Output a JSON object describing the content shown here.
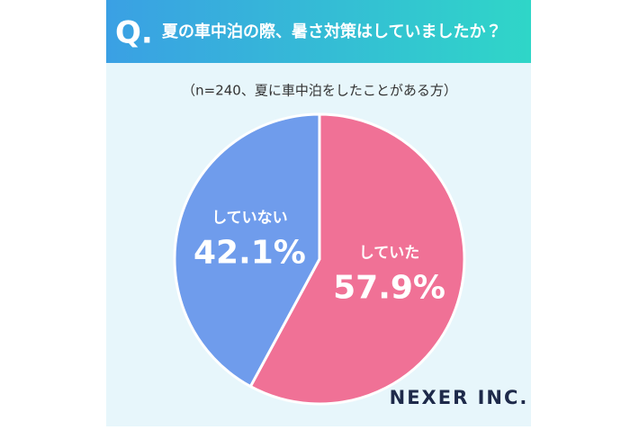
{
  "chart_data": {
    "type": "pie",
    "question_marker": "Q.",
    "title": "夏の車中泊の際、暑さ対策はしていましたか？",
    "subtitle": "（n=240、夏に車中泊をしたことがある方）",
    "categories": [
      "していた",
      "していない"
    ],
    "values": [
      57.9,
      42.1
    ],
    "value_labels": [
      "57.9%",
      "42.1%"
    ],
    "colors": [
      "#f07196",
      "#6f9cec"
    ]
  },
  "brand": "NEXER INC."
}
